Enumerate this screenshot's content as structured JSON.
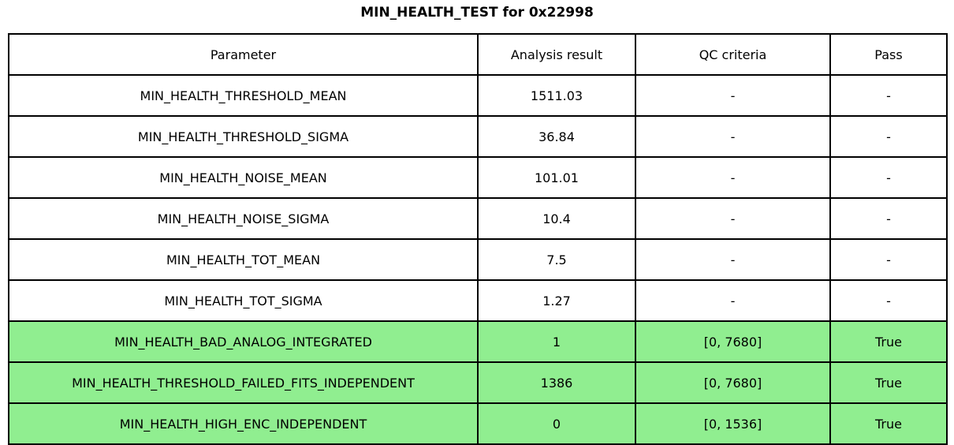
{
  "page": {
    "title": "MIN_HEALTH_TEST for 0x22998"
  },
  "colors": {
    "background": "#FFFFFF",
    "border": "#000000",
    "text": "#000000",
    "highlight_green": "#90EE90"
  },
  "chart_data": {
    "type": "table",
    "title": "MIN_HEALTH_TEST for 0x22998",
    "columns": [
      "Parameter",
      "Analysis result",
      "QC criteria",
      "Pass"
    ],
    "rows": [
      [
        "MIN_HEALTH_THRESHOLD_MEAN",
        "1511.03",
        "-",
        "-"
      ],
      [
        "MIN_HEALTH_THRESHOLD_SIGMA",
        "36.84",
        "-",
        "-"
      ],
      [
        "MIN_HEALTH_NOISE_MEAN",
        "101.01",
        "-",
        "-"
      ],
      [
        "MIN_HEALTH_NOISE_SIGMA",
        "10.4",
        "-",
        "-"
      ],
      [
        "MIN_HEALTH_TOT_MEAN",
        "7.5",
        "-",
        "-"
      ],
      [
        "MIN_HEALTH_TOT_SIGMA",
        "1.27",
        "-",
        "-"
      ],
      [
        "MIN_HEALTH_BAD_ANALOG_INTEGRATED",
        "1",
        "[0, 7680]",
        "True"
      ],
      [
        "MIN_HEALTH_THRESHOLD_FAILED_FITS_INDEPENDENT",
        "1386",
        "[0, 7680]",
        "True"
      ],
      [
        "MIN_HEALTH_HIGH_ENC_INDEPENDENT",
        "0",
        "[0, 1536]",
        "True"
      ]
    ],
    "highlighted_rows": [
      6,
      7,
      8
    ],
    "highlight_color": "#90EE90",
    "grid": true,
    "legend_position": "none"
  }
}
